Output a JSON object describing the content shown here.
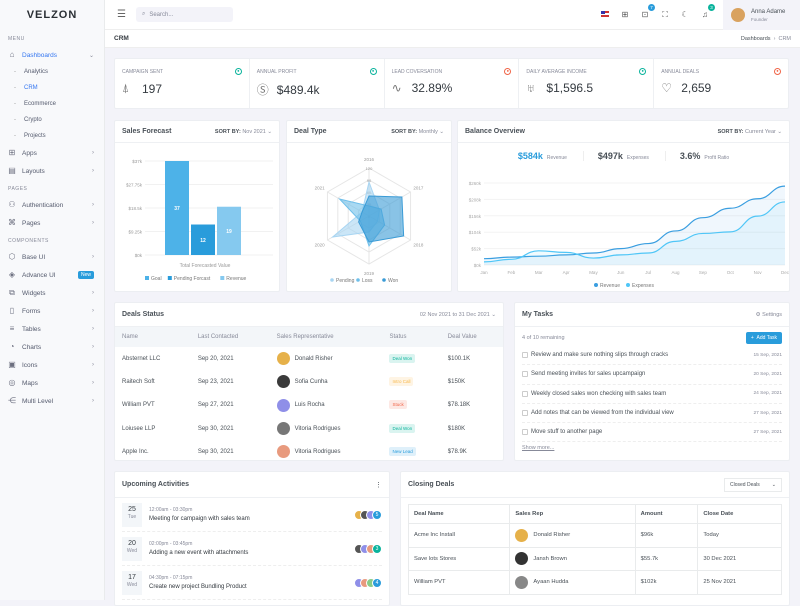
{
  "brand": "VELZON",
  "sidebar": {
    "menu_title": "MENU",
    "pages_title": "PAGES",
    "components_title": "COMPONENTS",
    "dashboards": {
      "label": "Dashboards",
      "icon": "home-icon",
      "children": [
        "Analytics",
        "CRM",
        "Ecommerce",
        "Crypto",
        "Projects"
      ],
      "active": "CRM"
    },
    "menu_items": [
      {
        "label": "Apps",
        "icon": "apps-icon"
      },
      {
        "label": "Layouts",
        "icon": "layout-icon"
      }
    ],
    "page_items": [
      {
        "label": "Authentication",
        "icon": "users-icon"
      },
      {
        "label": "Pages",
        "icon": "command-icon"
      }
    ],
    "component_items": [
      {
        "label": "Base UI",
        "icon": "cube-icon"
      },
      {
        "label": "Advance UI",
        "icon": "layers-icon",
        "badge": "New"
      },
      {
        "label": "Widgets",
        "icon": "copy-icon"
      },
      {
        "label": "Forms",
        "icon": "file-icon"
      },
      {
        "label": "Tables",
        "icon": "database-icon"
      },
      {
        "label": "Charts",
        "icon": "pie-chart-icon"
      },
      {
        "label": "Icons",
        "icon": "archive-icon"
      },
      {
        "label": "Maps",
        "icon": "map-pin-icon"
      },
      {
        "label": "Multi Level",
        "icon": "share-icon"
      }
    ]
  },
  "topbar": {
    "search_placeholder": "Search...",
    "cart_count": "7",
    "notif_count": "3",
    "user_name": "Anna Adame",
    "user_role": "Founder"
  },
  "breadcrumb": {
    "title": "CRM",
    "items": [
      "Dashboards",
      "CRM"
    ]
  },
  "kpis": [
    {
      "label": "Campaign Sent",
      "value": "197",
      "icon": "rocket-icon",
      "trend": "up"
    },
    {
      "label": "Annual Profit",
      "value": "$489.4k",
      "icon": "dollar-circle-icon",
      "trend": "up"
    },
    {
      "label": "Lead Coversation",
      "value": "32.89%",
      "icon": "pulse-icon",
      "trend": "down"
    },
    {
      "label": "Daily Average Income",
      "value": "$1,596.5",
      "icon": "trophy-icon",
      "trend": "up"
    },
    {
      "label": "Annual Deals",
      "value": "2,659",
      "icon": "handshake-icon",
      "trend": "down"
    }
  ],
  "colors": {
    "up": "#0ab39c",
    "down": "#f06548",
    "primary": "#299cdb"
  },
  "sales_forecast": {
    "title": "Sales Forecast",
    "sort_label": "SORT BY:",
    "sort_value": "Nov 2021"
  },
  "deal_type": {
    "title": "Deal Type",
    "sort_label": "SORT BY:",
    "sort_value": "Monthly"
  },
  "balance": {
    "title": "Balance Overview",
    "sort_label": "SORT BY:",
    "sort_value": "Current Year",
    "stats": [
      {
        "value": "$584k",
        "label": "Revenue"
      },
      {
        "value": "$497k",
        "label": "Expenses"
      },
      {
        "value": "3.6%",
        "label": "Profit Ratio"
      }
    ]
  },
  "chart_data": [
    {
      "type": "bar",
      "xlabel": "Total Forecasted Value",
      "categories": [
        "Goal",
        "Pending Forcast",
        "Revenue"
      ],
      "values": [
        37,
        12,
        19
      ],
      "data_labels": [
        "37",
        "12",
        "19"
      ],
      "ylim": [
        0,
        37
      ],
      "yticks": [
        "$0k",
        "$9.25k",
        "$18.5k",
        "$27.75k",
        "$37k"
      ],
      "colors": [
        "#4db2e8",
        "#299cdb",
        "#85c9ef"
      ],
      "legend": "bottom",
      "grid": true
    },
    {
      "type": "radar",
      "axes": [
        "2016",
        "2017",
        "2018",
        "2019",
        "2020",
        "2021"
      ],
      "rlim": [
        0,
        120
      ],
      "rticks": [
        "0",
        "30",
        "60",
        "90",
        "120"
      ],
      "series": [
        {
          "name": "Pending",
          "values": [
            85,
            30,
            25,
            40,
            105,
            20
          ],
          "color": "#a8d5f2"
        },
        {
          "name": "Loss",
          "values": [
            25,
            35,
            45,
            75,
            25,
            85
          ],
          "color": "#6fbfea"
        },
        {
          "name": "Won",
          "values": [
            50,
            95,
            100,
            65,
            30,
            20
          ],
          "color": "#3a9bd6"
        }
      ],
      "legend": "bottom"
    },
    {
      "type": "area",
      "categories": [
        "Jan",
        "Feb",
        "Mar",
        "Apr",
        "May",
        "Jun",
        "Jul",
        "Aug",
        "Sep",
        "Oct",
        "Nov",
        "Dec"
      ],
      "ylim": [
        0,
        260
      ],
      "yticks": [
        "$0k",
        "$52k",
        "$104k",
        "$156k",
        "$208k",
        "$260k"
      ],
      "series": [
        {
          "name": "Revenue",
          "values": [
            20,
            25,
            28,
            32,
            38,
            52,
            68,
            108,
            150,
            180,
            210,
            250
          ],
          "color": "#3a9ee0"
        },
        {
          "name": "Expenses",
          "values": [
            10,
            18,
            45,
            40,
            22,
            32,
            38,
            75,
            100,
            105,
            155,
            200
          ],
          "color": "#4fc6f7"
        }
      ],
      "legend": "bottom",
      "grid": true
    }
  ],
  "deals_status": {
    "title": "Deals Status",
    "range": "02 Nov 2021 to 31 Dec 2021",
    "columns": [
      "Name",
      "Last Contacted",
      "Sales Representative",
      "Status",
      "Deal Value"
    ],
    "rows": [
      {
        "name": "Absternet LLC",
        "date": "Sep 20, 2021",
        "rep": "Donald Risher",
        "status": "Deal Won",
        "status_type": "success",
        "value": "$100.1K",
        "avatar_color": "#e6b14a"
      },
      {
        "name": "Raitech Soft",
        "date": "Sep 23, 2021",
        "rep": "Sofia Cunha",
        "status": "Intro Call",
        "status_type": "warning",
        "value": "$150K",
        "avatar_color": "#3a3a3a"
      },
      {
        "name": "William PVT",
        "date": "Sep 27, 2021",
        "rep": "Luis Rocha",
        "status": "Stuck",
        "status_type": "danger",
        "value": "$78.18K",
        "avatar_color": "#8f8fe8"
      },
      {
        "name": "Loiusee LLP",
        "date": "Sep 30, 2021",
        "rep": "Vitoria Rodrigues",
        "status": "Deal Won",
        "status_type": "success",
        "value": "$180K",
        "avatar_color": "#777"
      },
      {
        "name": "Apple Inc.",
        "date": "Sep 30, 2021",
        "rep": "Vitoria Rodrigues",
        "status": "New Lead",
        "status_type": "info",
        "value": "$78.9K",
        "avatar_color": "#e89a7e"
      }
    ]
  },
  "tasks": {
    "title": "My Tasks",
    "settings": "Settings",
    "remaining": "4 of 10 remaining",
    "add_label": "Add Task",
    "show_more": "Show more...",
    "items": [
      {
        "text": "Review and make sure nothing slips through cracks",
        "date": "15 Sep, 2021"
      },
      {
        "text": "Send meeting invites for sales upcampaign",
        "date": "20 Sep, 2021"
      },
      {
        "text": "Weekly closed sales won checking with sales team",
        "date": "24 Sep, 2021"
      },
      {
        "text": "Add notes that can be viewed from the individual view",
        "date": "27 Sep, 2021"
      },
      {
        "text": "Move stuff to another page",
        "date": "27 Sep, 2021"
      }
    ]
  },
  "activities": {
    "title": "Upcoming Activities",
    "items": [
      {
        "day": "25",
        "weekday": "Tue",
        "time": "12:00am - 03:30pm",
        "title": "Meeting for campaign with sales team",
        "more": "5",
        "more_color": "#299cdb"
      },
      {
        "day": "20",
        "weekday": "Wed",
        "time": "02:00pm - 03:45pm",
        "title": "Adding a new event with attachments",
        "more": "3",
        "more_color": "#0ab39c"
      },
      {
        "day": "17",
        "weekday": "Wed",
        "time": "04:30pm - 07:15pm",
        "title": "Create new project Bundling Product",
        "more": "4",
        "more_color": "#299cdb"
      }
    ]
  },
  "closing": {
    "title": "Closing Deals",
    "filter": "Closed Deals",
    "columns": [
      "Deal Name",
      "Sales Rep",
      "Amount",
      "Close Date"
    ],
    "rows": [
      {
        "name": "Acme Inc Install",
        "rep": "Donald Risher",
        "amount": "$96k",
        "date": "Today",
        "avatar_color": "#e6b14a"
      },
      {
        "name": "Save lots Stores",
        "rep": "Jansh Brown",
        "amount": "$55.7k",
        "date": "30 Dec 2021",
        "avatar_color": "#333"
      },
      {
        "name": "William PVT",
        "rep": "Ayaan Hudda",
        "amount": "$102k",
        "date": "25 Nov 2021",
        "avatar_color": "#888"
      }
    ]
  }
}
